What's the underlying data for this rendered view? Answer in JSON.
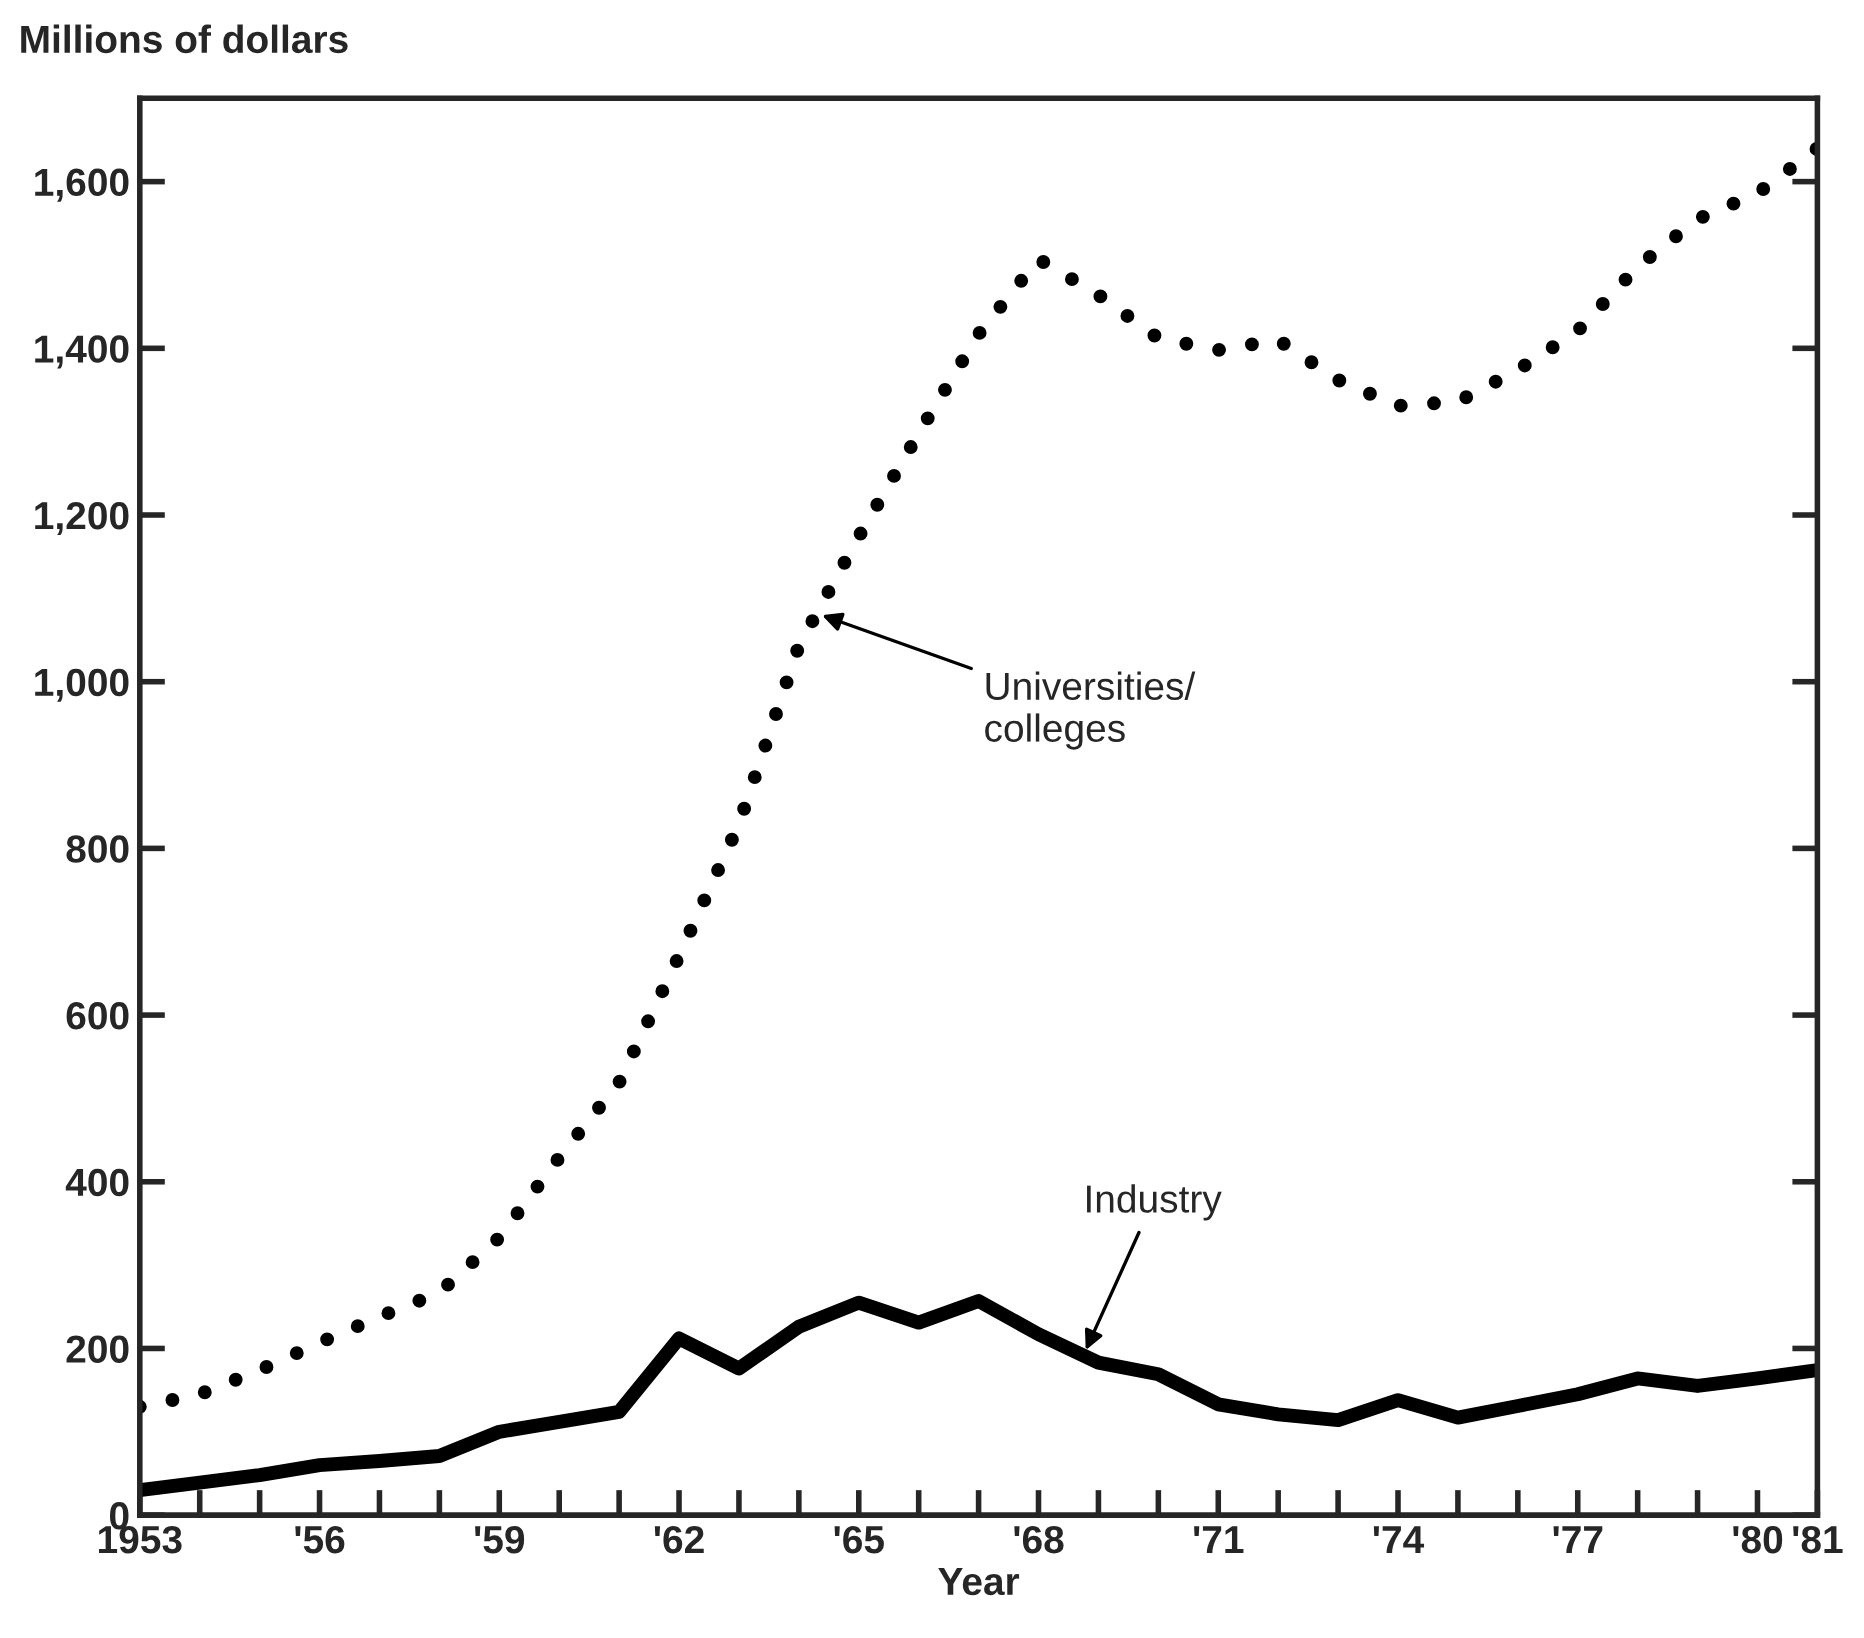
{
  "chart_data": {
    "type": "line",
    "xlabel": "Year",
    "ylabel": "Millions of dollars",
    "x": [
      1953,
      1954,
      1955,
      1956,
      1957,
      1958,
      1959,
      1960,
      1961,
      1962,
      1963,
      1964,
      1965,
      1966,
      1967,
      1968,
      1969,
      1970,
      1971,
      1972,
      1973,
      1974,
      1975,
      1976,
      1977,
      1978,
      1979,
      1980,
      1981
    ],
    "series": [
      {
        "color": "#000000",
        "line_style": "dotted",
        "values": [
          130,
          145,
          174,
          207,
          238,
          267,
          333,
          429,
          519,
          671,
          829,
          1043,
          1174,
          1298,
          1417,
          1507,
          1464,
          1412,
          1398,
          1410,
          1362,
          1331,
          1336,
          1374,
          1421,
          1498,
          1555,
          1586,
          1640
        ]
      },
      {
        "color": "#000000",
        "line_style": "solid",
        "values": [
          30,
          39,
          48,
          60,
          65,
          71,
          100,
          112,
          124,
          212,
          176,
          226,
          255,
          231,
          257,
          217,
          183,
          169,
          133,
          121,
          114,
          138,
          117,
          131,
          145,
          164,
          155,
          164,
          174
        ]
      }
    ],
    "annotations": [
      {
        "text": "Universities/\ncolleges",
        "x": 1964.3,
        "y": 1082
      },
      {
        "text": "Industry",
        "x": 1968.75,
        "y": 192
      }
    ],
    "xlim": [
      1953,
      1981
    ],
    "ylim": [
      0,
      1700
    ],
    "xticks": [
      {
        "value": 1953,
        "label": "1953"
      },
      {
        "value": 1954,
        "label": null
      },
      {
        "value": 1955,
        "label": null
      },
      {
        "value": 1956,
        "label": "'56"
      },
      {
        "value": 1957,
        "label": null
      },
      {
        "value": 1958,
        "label": null
      },
      {
        "value": 1959,
        "label": "'59"
      },
      {
        "value": 1960,
        "label": null
      },
      {
        "value": 1961,
        "label": null
      },
      {
        "value": 1962,
        "label": "'62"
      },
      {
        "value": 1963,
        "label": null
      },
      {
        "value": 1964,
        "label": null
      },
      {
        "value": 1965,
        "label": "'65"
      },
      {
        "value": 1966,
        "label": null
      },
      {
        "value": 1967,
        "label": null
      },
      {
        "value": 1968,
        "label": "'68"
      },
      {
        "value": 1969,
        "label": null
      },
      {
        "value": 1970,
        "label": null
      },
      {
        "value": 1971,
        "label": "'71"
      },
      {
        "value": 1972,
        "label": null
      },
      {
        "value": 1973,
        "label": null
      },
      {
        "value": 1974,
        "label": "'74"
      },
      {
        "value": 1975,
        "label": null
      },
      {
        "value": 1976,
        "label": null
      },
      {
        "value": 1977,
        "label": "'77"
      },
      {
        "value": 1978,
        "label": null
      },
      {
        "value": 1979,
        "label": null
      },
      {
        "value": 1980,
        "label": "'80"
      },
      {
        "value": 1981,
        "label": "'81"
      }
    ],
    "yticks": [
      0,
      200,
      400,
      600,
      800,
      {
        "value": 1000,
        "label": "1,000"
      },
      {
        "value": 1200,
        "label": "1,200"
      },
      {
        "value": 1400,
        "label": "1,400"
      },
      {
        "value": 1600,
        "label": "1,600"
      }
    ],
    "grid": false,
    "legend": false
  }
}
